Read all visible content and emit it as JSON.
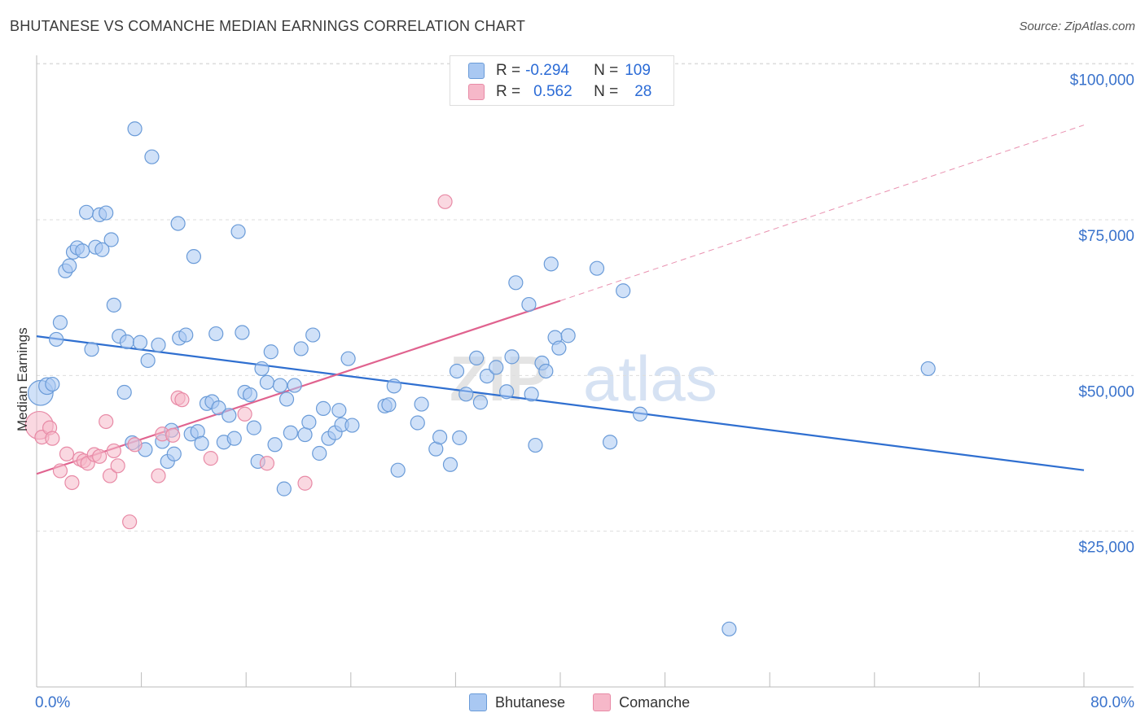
{
  "header": {
    "title": "BHUTANESE VS COMANCHE MEDIAN EARNINGS CORRELATION CHART",
    "source": "Source: ZipAtlas.com"
  },
  "legend_stats": {
    "row1": {
      "r_label": "R =",
      "r_value": "-0.294",
      "n_label": "N =",
      "n_value": "109"
    },
    "row2": {
      "r_label": "R =",
      "r_value": "0.562",
      "n_label": "N =",
      "n_value": "28"
    }
  },
  "colors": {
    "blue_fill": "#a9c8f2",
    "blue_stroke": "#6a9bd8",
    "blue_line": "#2f6fd0",
    "pink_fill": "#f6b8c9",
    "pink_stroke": "#e88aa6",
    "pink_line": "#e0638f",
    "axis_text": "#3a73cc",
    "grid": "#dddddd"
  },
  "chart_data": {
    "type": "scatter",
    "title": "BHUTANESE VS COMANCHE MEDIAN EARNINGS CORRELATION CHART",
    "xlabel": "",
    "ylabel": "Median Earnings",
    "xlim": [
      0,
      80
    ],
    "ylim": [
      0,
      105000
    ],
    "x_tick_labels": {
      "min": "0.0%",
      "max": "80.0%"
    },
    "y_ticks": [
      25000,
      50000,
      75000,
      100000
    ],
    "y_tick_labels": [
      "$25,000",
      "$50,000",
      "$75,000",
      "$100,000"
    ],
    "grid": true,
    "legend_position": "top-center",
    "series": [
      {
        "name": "Bhutanese",
        "color": "blue",
        "trend": {
          "x": [
            0,
            80
          ],
          "y": [
            56300,
            34800
          ],
          "dashed_from": null
        },
        "points": [
          [
            0.3,
            47200,
            1.8
          ],
          [
            0.8,
            48300,
            1.2
          ],
          [
            1.2,
            48600,
            1.0
          ],
          [
            1.5,
            55800,
            1.0
          ],
          [
            1.8,
            58500,
            1.0
          ],
          [
            2.2,
            66800,
            1.0
          ],
          [
            2.5,
            67600,
            1.0
          ],
          [
            2.8,
            69800,
            1.0
          ],
          [
            3.1,
            70500,
            1.0
          ],
          [
            3.5,
            70000,
            1.0
          ],
          [
            3.8,
            76200,
            1.0
          ],
          [
            4.2,
            54200,
            1.0
          ],
          [
            4.5,
            70600,
            1.0
          ],
          [
            4.8,
            75800,
            1.0
          ],
          [
            5.0,
            70200,
            1.0
          ],
          [
            5.3,
            76100,
            1.0
          ],
          [
            5.7,
            71800,
            1.0
          ],
          [
            5.9,
            61300,
            1.0
          ],
          [
            6.3,
            56300,
            1.0
          ],
          [
            6.7,
            47300,
            1.0
          ],
          [
            6.9,
            55400,
            1.0
          ],
          [
            7.3,
            39200,
            1.0
          ],
          [
            7.5,
            89600,
            1.0
          ],
          [
            7.9,
            55300,
            1.0
          ],
          [
            8.3,
            38100,
            1.0
          ],
          [
            8.5,
            52400,
            1.0
          ],
          [
            8.8,
            85100,
            1.0
          ],
          [
            9.3,
            54900,
            1.0
          ],
          [
            9.6,
            39400,
            1.0
          ],
          [
            10.0,
            36200,
            1.0
          ],
          [
            10.3,
            41200,
            1.0
          ],
          [
            10.5,
            37400,
            1.0
          ],
          [
            10.8,
            74400,
            1.0
          ],
          [
            10.9,
            56000,
            1.0
          ],
          [
            11.4,
            56500,
            1.0
          ],
          [
            11.8,
            40600,
            1.0
          ],
          [
            12.0,
            69100,
            1.0
          ],
          [
            12.3,
            41000,
            1.0
          ],
          [
            12.6,
            39100,
            1.0
          ],
          [
            13.0,
            45500,
            1.0
          ],
          [
            13.4,
            45800,
            1.0
          ],
          [
            13.7,
            56700,
            1.0
          ],
          [
            13.9,
            44800,
            1.0
          ],
          [
            14.3,
            39300,
            1.0
          ],
          [
            14.7,
            43600,
            1.0
          ],
          [
            15.1,
            39900,
            1.0
          ],
          [
            15.4,
            73100,
            1.0
          ],
          [
            15.7,
            56900,
            1.0
          ],
          [
            15.9,
            47300,
            1.0
          ],
          [
            16.3,
            46900,
            1.0
          ],
          [
            16.6,
            41600,
            1.0
          ],
          [
            16.9,
            36200,
            1.0
          ],
          [
            17.2,
            51100,
            1.0
          ],
          [
            17.6,
            48900,
            1.0
          ],
          [
            17.9,
            53800,
            1.0
          ],
          [
            18.2,
            38900,
            1.0
          ],
          [
            18.6,
            48400,
            1.0
          ],
          [
            18.9,
            31800,
            1.0
          ],
          [
            19.1,
            46200,
            1.0
          ],
          [
            19.4,
            40800,
            1.0
          ],
          [
            19.7,
            48400,
            1.0
          ],
          [
            20.2,
            54300,
            1.0
          ],
          [
            20.5,
            40500,
            1.0
          ],
          [
            20.8,
            42500,
            1.0
          ],
          [
            21.1,
            56500,
            1.0
          ],
          [
            21.6,
            37500,
            1.0
          ],
          [
            21.9,
            44700,
            1.0
          ],
          [
            22.3,
            39900,
            1.0
          ],
          [
            22.8,
            40800,
            1.0
          ],
          [
            23.1,
            44400,
            1.0
          ],
          [
            23.3,
            42100,
            1.0
          ],
          [
            23.8,
            52700,
            1.0
          ],
          [
            24.1,
            42000,
            1.0
          ],
          [
            26.6,
            45100,
            1.0
          ],
          [
            26.9,
            45300,
            1.0
          ],
          [
            27.3,
            48300,
            1.0
          ],
          [
            27.6,
            34800,
            1.0
          ],
          [
            29.1,
            42400,
            1.0
          ],
          [
            29.4,
            45400,
            1.0
          ],
          [
            30.5,
            38200,
            1.0
          ],
          [
            30.8,
            40100,
            1.0
          ],
          [
            31.6,
            35700,
            1.0
          ],
          [
            32.1,
            50700,
            1.0
          ],
          [
            32.3,
            40000,
            1.0
          ],
          [
            32.8,
            47000,
            1.0
          ],
          [
            33.6,
            52800,
            1.0
          ],
          [
            33.9,
            45700,
            1.0
          ],
          [
            34.4,
            49900,
            1.0
          ],
          [
            35.1,
            51300,
            1.0
          ],
          [
            35.9,
            47400,
            1.0
          ],
          [
            36.3,
            53000,
            1.0
          ],
          [
            36.6,
            64900,
            1.0
          ],
          [
            37.6,
            61400,
            1.0
          ],
          [
            37.8,
            47000,
            1.0
          ],
          [
            38.1,
            38800,
            1.0
          ],
          [
            38.6,
            52000,
            1.0
          ],
          [
            38.9,
            50700,
            1.0
          ],
          [
            39.3,
            67900,
            1.0
          ],
          [
            39.6,
            56100,
            1.0
          ],
          [
            39.9,
            54400,
            1.0
          ],
          [
            40.6,
            56400,
            1.0
          ],
          [
            42.8,
            67200,
            1.0
          ],
          [
            43.8,
            39300,
            1.0
          ],
          [
            44.8,
            63600,
            1.0
          ],
          [
            46.1,
            43800,
            1.0
          ],
          [
            68.1,
            51100,
            1.0
          ],
          [
            52.9,
            9300,
            1.0
          ]
        ]
      },
      {
        "name": "Comanche",
        "color": "pink",
        "trend": {
          "x": [
            0,
            40
          ],
          "y": [
            34200,
            62000
          ],
          "dashed_to": [
            80,
            90200
          ]
        },
        "points": [
          [
            0.2,
            42000,
            2.0
          ],
          [
            0.4,
            40100,
            1.0
          ],
          [
            1.0,
            41600,
            1.0
          ],
          [
            1.2,
            39900,
            1.0
          ],
          [
            1.8,
            34700,
            1.0
          ],
          [
            2.3,
            37400,
            1.0
          ],
          [
            2.7,
            32800,
            1.0
          ],
          [
            3.3,
            36600,
            1.0
          ],
          [
            3.6,
            36300,
            1.0
          ],
          [
            3.9,
            35900,
            1.0
          ],
          [
            4.4,
            37300,
            1.0
          ],
          [
            4.8,
            37000,
            1.0
          ],
          [
            5.3,
            42600,
            1.0
          ],
          [
            5.6,
            33900,
            1.0
          ],
          [
            5.9,
            37900,
            1.0
          ],
          [
            6.2,
            35500,
            1.0
          ],
          [
            7.1,
            26500,
            1.0
          ],
          [
            7.5,
            38900,
            1.0
          ],
          [
            9.3,
            33900,
            1.0
          ],
          [
            9.6,
            40600,
            1.0
          ],
          [
            10.4,
            40400,
            1.0
          ],
          [
            10.8,
            46400,
            1.0
          ],
          [
            11.1,
            46100,
            1.0
          ],
          [
            13.3,
            36700,
            1.0
          ],
          [
            15.9,
            43800,
            1.0
          ],
          [
            17.6,
            35900,
            1.0
          ],
          [
            20.5,
            32700,
            1.0
          ],
          [
            31.2,
            77900,
            1.0
          ]
        ]
      }
    ]
  },
  "bottom_legend": {
    "item1": "Bhutanese",
    "item2": "Comanche"
  },
  "watermark": {
    "part1": "ZIP",
    "part2": "atlas"
  }
}
